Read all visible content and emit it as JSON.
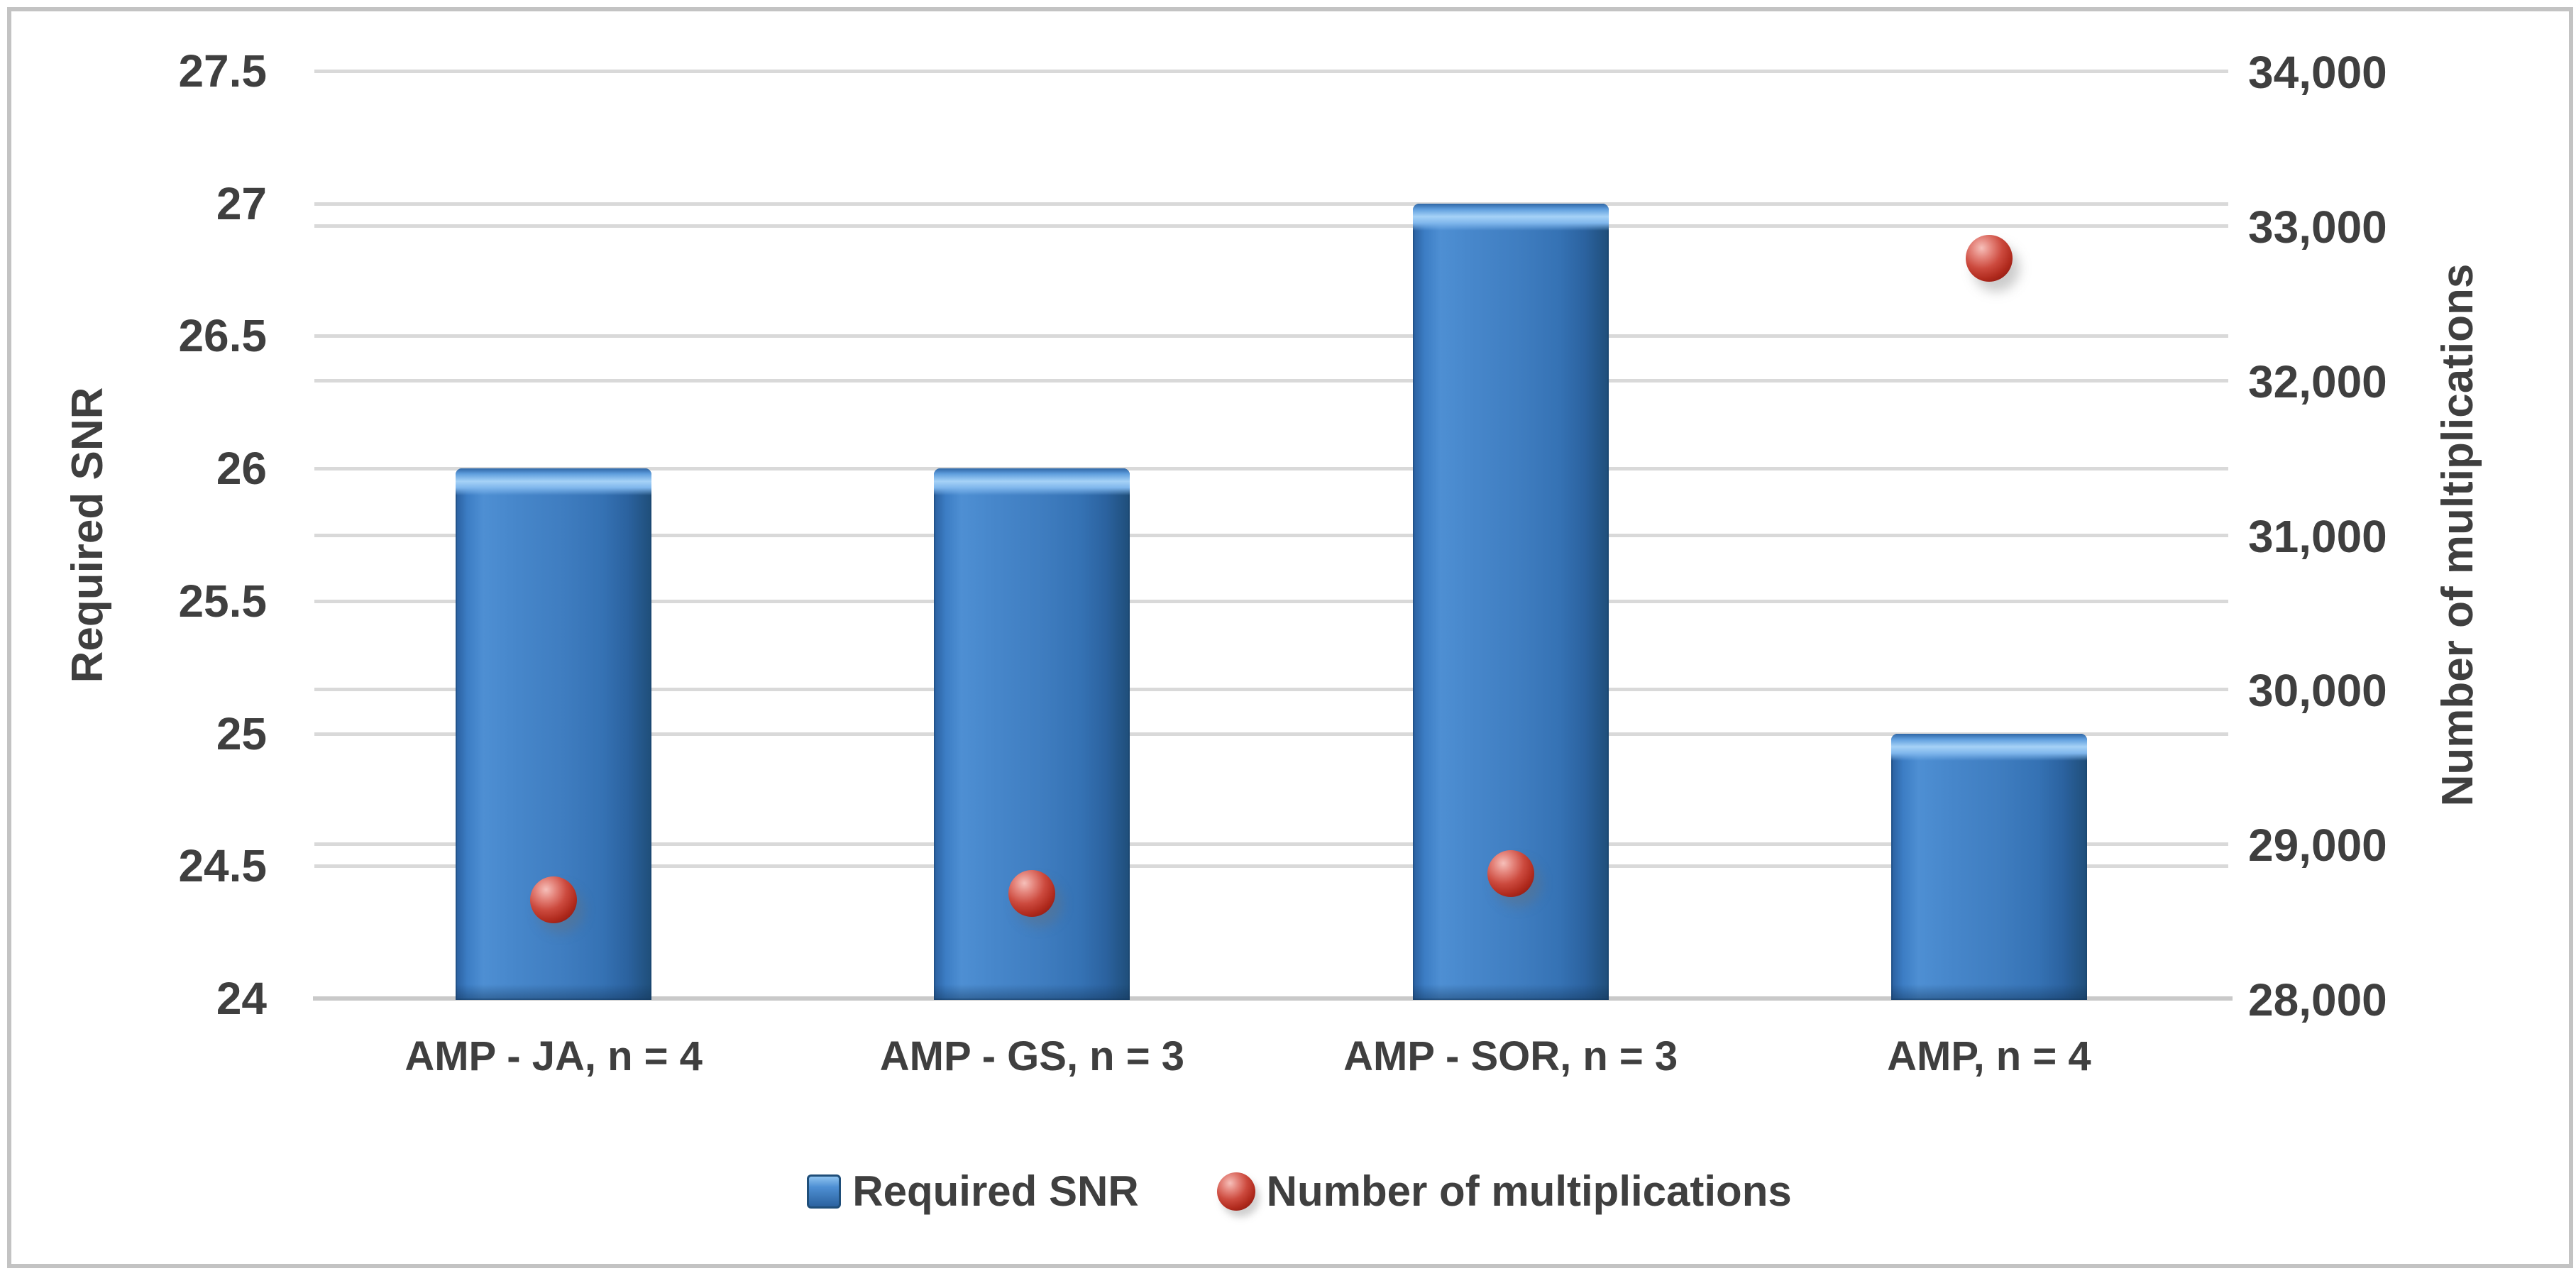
{
  "chart_data": {
    "type": "bar",
    "subtype": "combo-bar-and-points-dual-axis",
    "categories": [
      "AMP - JA, n = 4",
      "AMP - GS, n = 3",
      "AMP - SOR, n = 3",
      "AMP, n = 4"
    ],
    "series": [
      {
        "name": "Required SNR",
        "type": "bar",
        "axis": "left",
        "values": [
          26,
          26,
          27,
          25
        ],
        "color": "#3A7ABE"
      },
      {
        "name": "Number of multiplications",
        "type": "scatter",
        "axis": "right",
        "values": [
          28640,
          28680,
          28810,
          32790
        ],
        "color": "#C0392B"
      }
    ],
    "left_axis": {
      "title": "Required SNR",
      "min": 24,
      "max": 27.5,
      "step": 0.5,
      "tick_labels": [
        "24",
        "24.5",
        "25",
        "25.5",
        "26",
        "26.5",
        "27",
        "27.5"
      ]
    },
    "right_axis": {
      "title": "Number of multiplications",
      "min": 28000,
      "max": 34000,
      "step": 1000,
      "tick_labels": [
        "28,000",
        "29,000",
        "30,000",
        "31,000",
        "32,000",
        "33,000",
        "34,000"
      ]
    },
    "legend": [
      {
        "label": "Required SNR",
        "marker": "square",
        "color": "#3A7ABE"
      },
      {
        "label": "Number of multiplications",
        "marker": "circle",
        "color": "#C0392B"
      }
    ],
    "grid": true,
    "legend_position": "bottom",
    "title": ""
  },
  "colors": {
    "bar_fill": "#3A7ABE",
    "bar_edge": "#1F4E79",
    "bar_highlight": "#A6D2F7",
    "point_fill": "#C0392B",
    "point_edge": "#871710",
    "gridline": "#D9D9D9",
    "axis_line": "#C9C9C9",
    "text": "#3F3F3F",
    "frame_border": "#C3C3C3",
    "background": "#FFFFFF"
  }
}
